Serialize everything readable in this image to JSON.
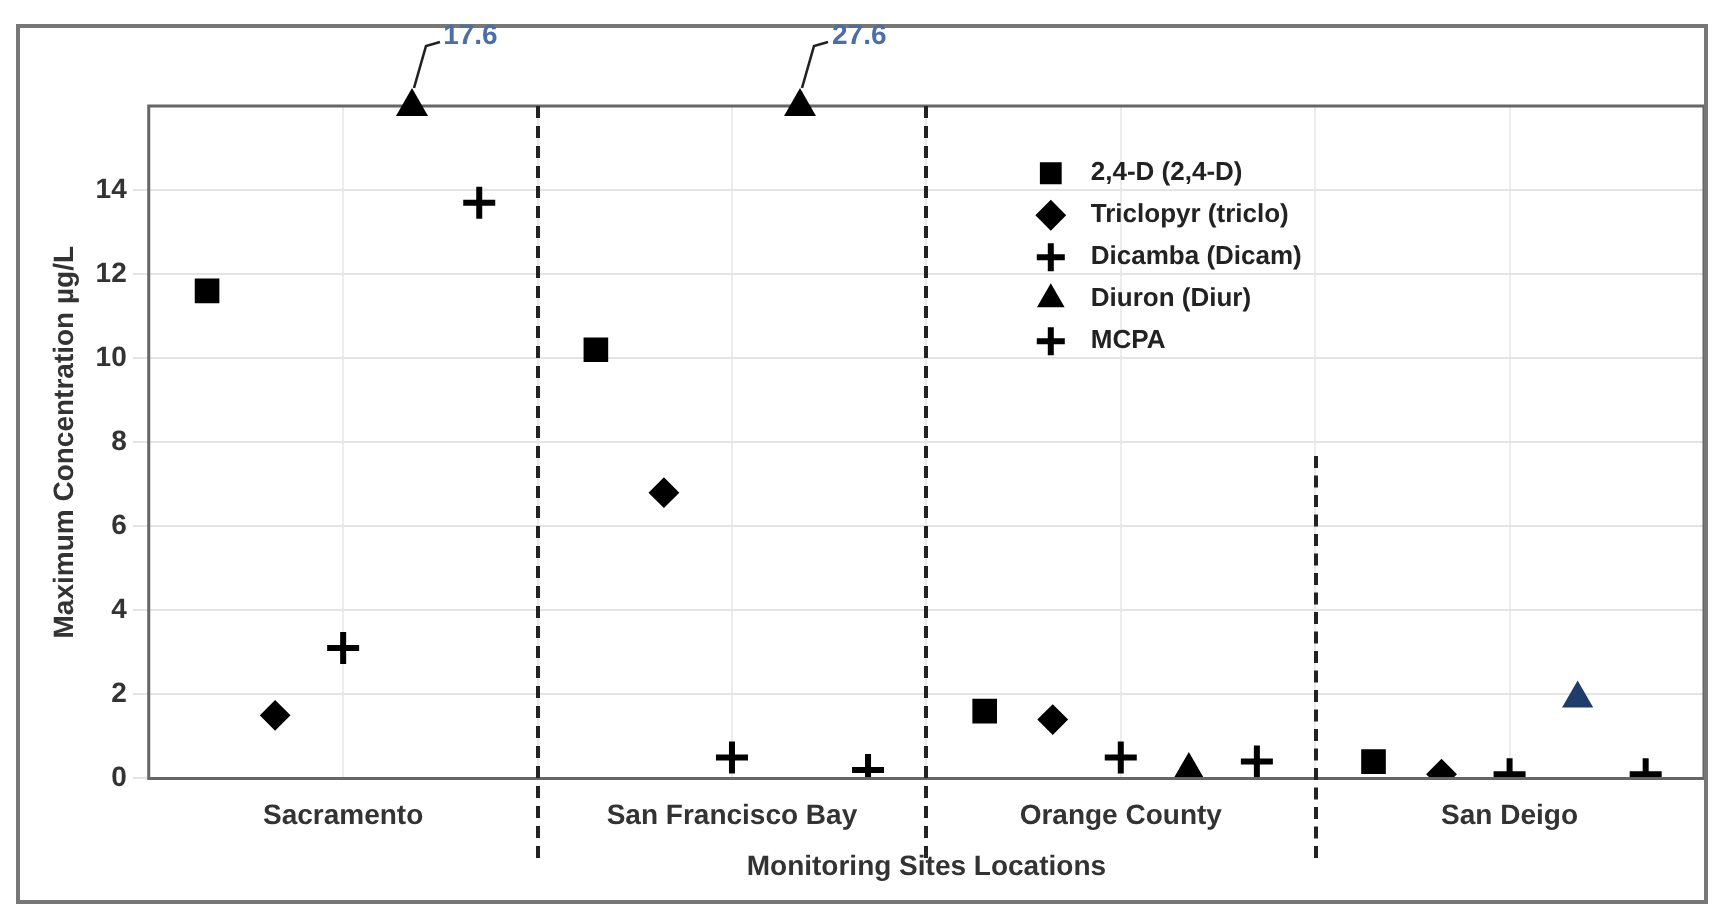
{
  "chart_data": {
    "type": "scatter",
    "xlabel": "Monitoring Sites Locations",
    "ylabel": "Maximum Concentration µg/L",
    "categories": [
      "Sacramento",
      "San Francisco Bay",
      "Orange County",
      "San Deigo"
    ],
    "ylim": [
      0,
      16
    ],
    "yticks": [
      0,
      2,
      4,
      6,
      8,
      10,
      12,
      14
    ],
    "grid": true,
    "legend": "top right",
    "series": [
      {
        "name": "2,4-D (2,4-D)",
        "color": "#000000",
        "marker": "square",
        "values": [
          11.6,
          10.2,
          1.6,
          0.4
        ]
      },
      {
        "name": "Triclopyr (triclo)",
        "color": "#000000",
        "marker": "diamond",
        "values": [
          1.5,
          6.8,
          1.4,
          0.1
        ]
      },
      {
        "name": "Dicamba (Dicam)",
        "color": "#000000",
        "marker": "cross",
        "values": [
          3.1,
          0.5,
          0.5,
          0.1
        ]
      },
      {
        "name": "Diuron (Diur)",
        "color": "#000000",
        "marker": "triangle",
        "values": [
          null,
          null,
          0.2,
          1.9
        ],
        "colors": [
          "#000000",
          "#000000",
          "#000000",
          "#1f3d6b"
        ]
      },
      {
        "name": "MCPA",
        "color": "#000000",
        "marker": "cross",
        "values": [
          13.7,
          0.2,
          0.4,
          0.1
        ]
      }
    ],
    "annotations": [
      "17.6",
      "27.6"
    ]
  }
}
